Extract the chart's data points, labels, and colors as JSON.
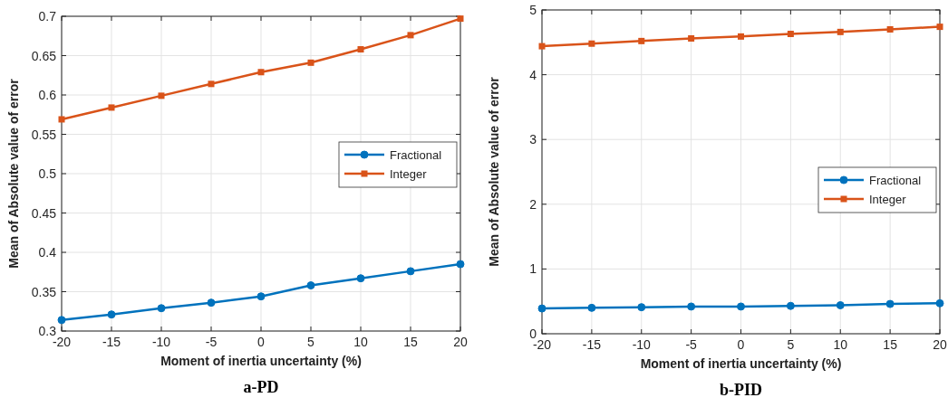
{
  "chart_data": [
    {
      "type": "line",
      "title": "a-PD",
      "xlabel": "Moment of inertia uncertainty (%)",
      "ylabel": "Mean of Absolute value of error",
      "x": [
        -20,
        -15,
        -10,
        -5,
        0,
        5,
        10,
        15,
        20
      ],
      "xlim": [
        -20,
        20
      ],
      "xticks": [
        -20,
        -15,
        -10,
        -5,
        0,
        5,
        10,
        15,
        20
      ],
      "ylim": [
        0.3,
        0.7
      ],
      "yticks": [
        0.3,
        0.35,
        0.4,
        0.45,
        0.5,
        0.55,
        0.6,
        0.65,
        0.7
      ],
      "grid": true,
      "legend": "right",
      "line_style": "solid",
      "series": [
        {
          "name": "Fractional",
          "color": "#0072bd",
          "marker": "circle",
          "values": [
            0.314,
            0.321,
            0.329,
            0.336,
            0.344,
            0.358,
            0.367,
            0.376,
            0.385
          ]
        },
        {
          "name": "Integer",
          "color": "#d95319",
          "marker": "square",
          "values": [
            0.569,
            0.584,
            0.599,
            0.614,
            0.629,
            0.641,
            0.658,
            0.676,
            0.697
          ]
        }
      ]
    },
    {
      "type": "line",
      "title": "b-PID",
      "xlabel": "Moment of inertia uncertainty (%)",
      "ylabel": "Mean of Absolute value of error",
      "x": [
        -20,
        -15,
        -10,
        -5,
        0,
        5,
        10,
        15,
        20
      ],
      "xlim": [
        -20,
        20
      ],
      "xticks": [
        -20,
        -15,
        -10,
        -5,
        0,
        5,
        10,
        15,
        20
      ],
      "ylim": [
        0,
        5
      ],
      "yticks": [
        0,
        1,
        2,
        3,
        4,
        5
      ],
      "grid": true,
      "legend": "right",
      "line_style": "solid",
      "series": [
        {
          "name": "Fractional",
          "color": "#0072bd",
          "marker": "circle",
          "values": [
            0.39,
            0.4,
            0.41,
            0.42,
            0.42,
            0.43,
            0.44,
            0.46,
            0.47
          ]
        },
        {
          "name": "Integer",
          "color": "#d95319",
          "marker": "square",
          "values": [
            4.44,
            4.48,
            4.52,
            4.56,
            4.59,
            4.63,
            4.66,
            4.7,
            4.74
          ]
        }
      ]
    }
  ]
}
